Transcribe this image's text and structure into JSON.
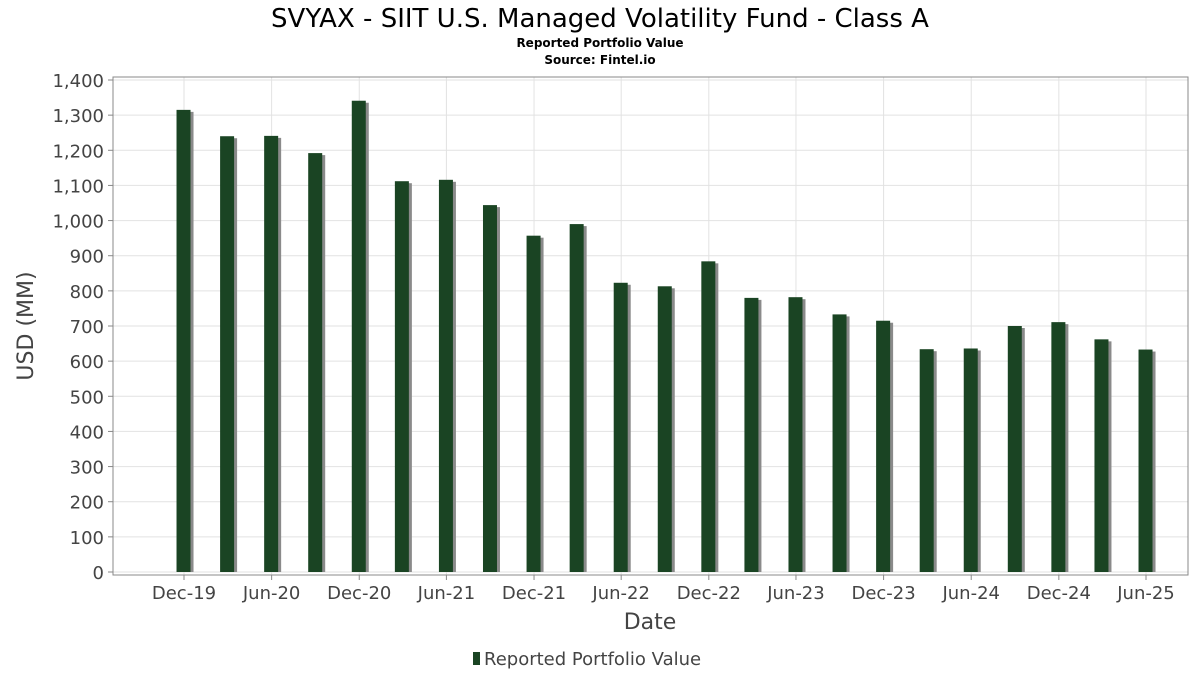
{
  "chart_data": {
    "type": "bar",
    "title": "SVYAX - SIIT U.S. Managed Volatility Fund - Class A",
    "subtitle": "Reported Portfolio Value",
    "source": "Source: Fintel.io",
    "xlabel": "Date",
    "ylabel": "USD (MM)",
    "ylim": [
      0,
      1400
    ],
    "ytick_step": 100,
    "yticks": [
      "0",
      "100",
      "200",
      "300",
      "400",
      "500",
      "600",
      "700",
      "800",
      "900",
      "1,000",
      "1,100",
      "1,200",
      "1,300",
      "1,400"
    ],
    "xticks": [
      "Dec-19",
      "Jun-20",
      "Dec-20",
      "Jun-21",
      "Dec-21",
      "Jun-22",
      "Dec-22",
      "Jun-23",
      "Dec-23",
      "Jun-24",
      "Dec-24",
      "Jun-25"
    ],
    "grid": true,
    "legend_position": "bottom",
    "series": [
      {
        "name": "Reported Portfolio Value",
        "color": "#1a4423",
        "x": [
          "2019-11-30",
          "2020-02-29",
          "2020-05-31",
          "2020-08-31",
          "2020-11-30",
          "2021-02-28",
          "2021-05-31",
          "2021-08-31",
          "2021-11-30",
          "2022-02-28",
          "2022-05-31",
          "2022-08-31",
          "2022-11-30",
          "2023-02-28",
          "2023-05-31",
          "2023-08-31",
          "2023-11-30",
          "2024-02-29",
          "2024-05-31",
          "2024-08-31",
          "2024-11-30",
          "2025-02-28",
          "2025-05-31",
          "2025-08-31"
        ],
        "values": [
          1315,
          1240,
          1241,
          1192,
          1341,
          1112,
          1116,
          1044,
          957,
          990,
          823,
          813,
          884,
          780,
          782,
          733,
          715,
          634,
          636,
          700,
          711,
          662,
          633,
          0
        ]
      }
    ]
  }
}
